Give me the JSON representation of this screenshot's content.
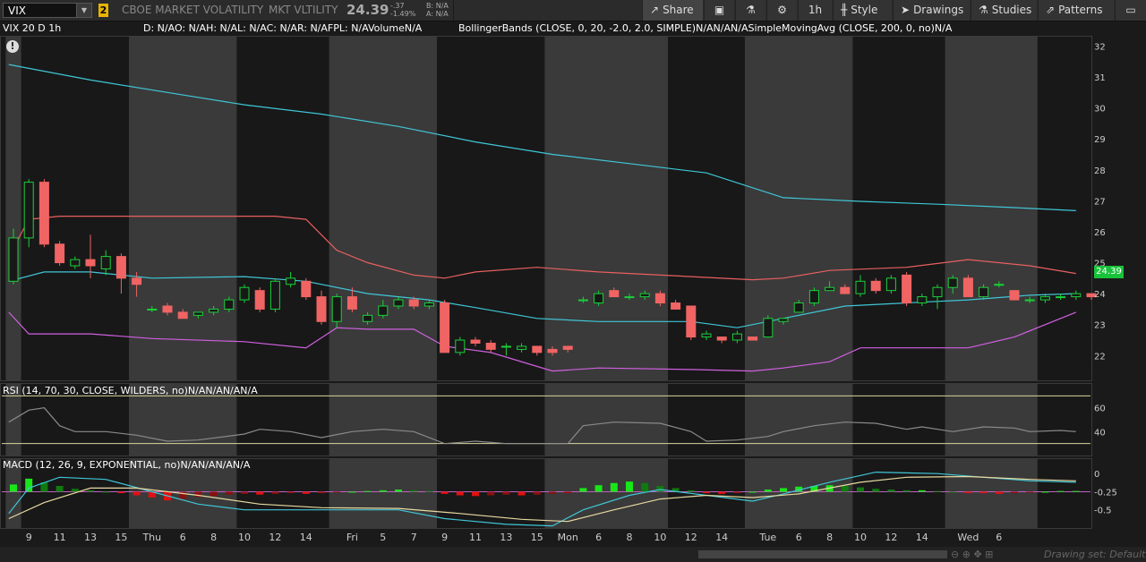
{
  "toolbar": {
    "symbol": "VIX",
    "link_number": "2",
    "description": "CBOE MARKET VOLATILITY",
    "short_desc": "MKT VLTILITY",
    "last_price": "24.39",
    "change": "-.37",
    "change_pct": "-1.49%",
    "bid": "B: N/A",
    "ask": "A: N/A",
    "buttons": {
      "share": "Share",
      "timeframe": "1h",
      "style": "Style",
      "drawings": "Drawings",
      "studies": "Studies",
      "patterns": "Patterns"
    }
  },
  "infobar": {
    "chart_label": "VIX 20 D 1h",
    "ohlc": "D: N/AO: N/AH: N/AL: N/AC: N/AR: N/AFPL: N/AVolumeN/A",
    "studies": "BollingerBands (CLOSE, 0, 20, -2.0, 2.0, SIMPLE)N/AN/AN/ASimpleMovingAvg (CLOSE, 200, 0, no)N/A"
  },
  "rsi_label": "RSI (14, 70, 30, CLOSE, WILDERS, no)N/AN/AN/AN/A",
  "macd_label": "MACD (12, 26, 9, EXPONENTIAL, no)N/AN/AN/AN/A",
  "status": {
    "drawing_set": "Drawing set: Default"
  },
  "colors": {
    "up": "#19d139",
    "down": "#f06464",
    "bb_mid": "#3fc6d6",
    "bb_upper": "#e86060",
    "bb_lower": "#d060e0",
    "sma200": "#3fc6d6",
    "rsi": "#8a8a8a",
    "rsi_bands": "#d8d3a0"
  },
  "chart_data": {
    "type": "candlestick",
    "price_axis": {
      "ticks": [
        22,
        23,
        24,
        25,
        26,
        27,
        28,
        29,
        30,
        31,
        32
      ],
      "range": [
        21.2,
        32.3
      ]
    },
    "rsi_axis": {
      "ticks": [
        40,
        60
      ],
      "range": [
        20,
        80
      ]
    },
    "macd_axis": {
      "ticks": [
        0,
        -0.25,
        -0.5
      ],
      "labels": [
        "0",
        "-0.25",
        "-0.5"
      ],
      "range": [
        -0.75,
        0.2
      ]
    },
    "x_ticks": [
      {
        "i": 1,
        "label": "9"
      },
      {
        "i": 3,
        "label": "11"
      },
      {
        "i": 5,
        "label": "13"
      },
      {
        "i": 7,
        "label": "15"
      },
      {
        "i": 9,
        "label": "Thu"
      },
      {
        "i": 11,
        "label": "6"
      },
      {
        "i": 13,
        "label": "8"
      },
      {
        "i": 15,
        "label": "10"
      },
      {
        "i": 17,
        "label": "12"
      },
      {
        "i": 19,
        "label": "14"
      },
      {
        "i": 22,
        "label": "Fri"
      },
      {
        "i": 24,
        "label": "5"
      },
      {
        "i": 26,
        "label": "7"
      },
      {
        "i": 28,
        "label": "9"
      },
      {
        "i": 30,
        "label": "11"
      },
      {
        "i": 32,
        "label": "13"
      },
      {
        "i": 34,
        "label": "15"
      },
      {
        "i": 36,
        "label": "Mon"
      },
      {
        "i": 38,
        "label": "6"
      },
      {
        "i": 40,
        "label": "8"
      },
      {
        "i": 42,
        "label": "10"
      },
      {
        "i": 44,
        "label": "12"
      },
      {
        "i": 46,
        "label": "14"
      },
      {
        "i": 49,
        "label": "Tue"
      },
      {
        "i": 51,
        "label": "6"
      },
      {
        "i": 53,
        "label": "8"
      },
      {
        "i": 55,
        "label": "10"
      },
      {
        "i": 57,
        "label": "12"
      },
      {
        "i": 59,
        "label": "14"
      },
      {
        "i": 62,
        "label": "Wed"
      },
      {
        "i": 64,
        "label": "6"
      }
    ],
    "session_shading": [
      [
        -0.5,
        0.5
      ],
      [
        7.5,
        14.5
      ],
      [
        20.5,
        27.5
      ],
      [
        34.5,
        42.5
      ],
      [
        47.5,
        54.5
      ],
      [
        60.5,
        66.5
      ]
    ],
    "candles": [
      {
        "o": 24.4,
        "h": 26.1,
        "l": 24.3,
        "c": 25.8
      },
      {
        "o": 25.8,
        "h": 27.7,
        "l": 25.5,
        "c": 27.6
      },
      {
        "o": 27.6,
        "h": 27.7,
        "l": 25.5,
        "c": 25.6
      },
      {
        "o": 25.6,
        "h": 25.7,
        "l": 24.9,
        "c": 25.0
      },
      {
        "o": 24.9,
        "h": 25.2,
        "l": 24.8,
        "c": 25.1
      },
      {
        "o": 25.1,
        "h": 25.9,
        "l": 24.5,
        "c": 24.9
      },
      {
        "o": 24.8,
        "h": 25.4,
        "l": 24.6,
        "c": 25.2
      },
      {
        "o": 25.2,
        "h": 25.3,
        "l": 24.0,
        "c": 24.5
      },
      {
        "o": 24.5,
        "h": 24.7,
        "l": 23.9,
        "c": 24.3
      },
      {
        "o": 23.5,
        "h": 23.6,
        "l": 23.4,
        "c": 23.5
      },
      {
        "o": 23.6,
        "h": 23.7,
        "l": 23.3,
        "c": 23.4
      },
      {
        "o": 23.4,
        "h": 23.5,
        "l": 23.2,
        "c": 23.2
      },
      {
        "o": 23.3,
        "h": 23.4,
        "l": 23.2,
        "c": 23.4
      },
      {
        "o": 23.4,
        "h": 23.6,
        "l": 23.3,
        "c": 23.5
      },
      {
        "o": 23.5,
        "h": 23.9,
        "l": 23.4,
        "c": 23.8
      },
      {
        "o": 23.8,
        "h": 24.3,
        "l": 23.7,
        "c": 24.2
      },
      {
        "o": 24.1,
        "h": 24.2,
        "l": 23.4,
        "c": 23.5
      },
      {
        "o": 23.5,
        "h": 24.5,
        "l": 23.4,
        "c": 24.4
      },
      {
        "o": 24.3,
        "h": 24.7,
        "l": 24.2,
        "c": 24.5
      },
      {
        "o": 24.4,
        "h": 24.5,
        "l": 23.8,
        "c": 23.9
      },
      {
        "o": 23.9,
        "h": 24.1,
        "l": 23.0,
        "c": 23.1
      },
      {
        "o": 23.1,
        "h": 24.0,
        "l": 22.9,
        "c": 23.9
      },
      {
        "o": 23.9,
        "h": 24.2,
        "l": 23.4,
        "c": 23.5
      },
      {
        "o": 23.1,
        "h": 23.4,
        "l": 23.0,
        "c": 23.3
      },
      {
        "o": 23.3,
        "h": 23.8,
        "l": 23.2,
        "c": 23.6
      },
      {
        "o": 23.6,
        "h": 23.9,
        "l": 23.5,
        "c": 23.8
      },
      {
        "o": 23.8,
        "h": 23.9,
        "l": 23.5,
        "c": 23.6
      },
      {
        "o": 23.6,
        "h": 23.8,
        "l": 23.5,
        "c": 23.7
      },
      {
        "o": 23.7,
        "h": 23.8,
        "l": 22.1,
        "c": 22.1
      },
      {
        "o": 22.1,
        "h": 22.6,
        "l": 22.0,
        "c": 22.5
      },
      {
        "o": 22.5,
        "h": 22.6,
        "l": 22.3,
        "c": 22.4
      },
      {
        "o": 22.4,
        "h": 22.5,
        "l": 22.1,
        "c": 22.2
      },
      {
        "o": 22.3,
        "h": 22.4,
        "l": 22.0,
        "c": 22.3
      },
      {
        "o": 22.2,
        "h": 22.4,
        "l": 22.1,
        "c": 22.3
      },
      {
        "o": 22.3,
        "h": 22.3,
        "l": 22.0,
        "c": 22.1
      },
      {
        "o": 22.2,
        "h": 22.3,
        "l": 22.0,
        "c": 22.1
      },
      {
        "o": 22.3,
        "h": 22.3,
        "l": 22.1,
        "c": 22.2
      },
      {
        "o": 23.8,
        "h": 23.9,
        "l": 23.7,
        "c": 23.8
      },
      {
        "o": 23.7,
        "h": 24.1,
        "l": 23.6,
        "c": 24.0
      },
      {
        "o": 24.1,
        "h": 24.2,
        "l": 23.9,
        "c": 23.9
      },
      {
        "o": 23.9,
        "h": 24.0,
        "l": 23.8,
        "c": 23.9
      },
      {
        "o": 23.9,
        "h": 24.1,
        "l": 23.8,
        "c": 24.0
      },
      {
        "o": 24.0,
        "h": 24.1,
        "l": 23.6,
        "c": 23.7
      },
      {
        "o": 23.7,
        "h": 23.8,
        "l": 23.5,
        "c": 23.5
      },
      {
        "o": 23.6,
        "h": 23.6,
        "l": 22.5,
        "c": 22.6
      },
      {
        "o": 22.6,
        "h": 22.8,
        "l": 22.5,
        "c": 22.7
      },
      {
        "o": 22.6,
        "h": 22.6,
        "l": 22.4,
        "c": 22.5
      },
      {
        "o": 22.5,
        "h": 22.8,
        "l": 22.4,
        "c": 22.7
      },
      {
        "o": 22.6,
        "h": 22.6,
        "l": 22.5,
        "c": 22.5
      },
      {
        "o": 22.6,
        "h": 23.3,
        "l": 22.6,
        "c": 23.2
      },
      {
        "o": 23.1,
        "h": 23.2,
        "l": 23.0,
        "c": 23.2
      },
      {
        "o": 23.4,
        "h": 23.8,
        "l": 23.4,
        "c": 23.7
      },
      {
        "o": 23.7,
        "h": 24.2,
        "l": 23.6,
        "c": 24.1
      },
      {
        "o": 24.1,
        "h": 24.4,
        "l": 24.1,
        "c": 24.2
      },
      {
        "o": 24.2,
        "h": 24.3,
        "l": 24.0,
        "c": 24.0
      },
      {
        "o": 24.0,
        "h": 24.6,
        "l": 23.9,
        "c": 24.4
      },
      {
        "o": 24.4,
        "h": 24.5,
        "l": 24.0,
        "c": 24.1
      },
      {
        "o": 24.1,
        "h": 24.6,
        "l": 24.0,
        "c": 24.5
      },
      {
        "o": 24.6,
        "h": 24.7,
        "l": 23.6,
        "c": 23.7
      },
      {
        "o": 23.7,
        "h": 24.0,
        "l": 23.6,
        "c": 23.9
      },
      {
        "o": 23.9,
        "h": 24.3,
        "l": 23.5,
        "c": 24.2
      },
      {
        "o": 24.2,
        "h": 24.6,
        "l": 24.0,
        "c": 24.5
      },
      {
        "o": 24.5,
        "h": 24.6,
        "l": 23.9,
        "c": 23.9
      },
      {
        "o": 23.9,
        "h": 24.3,
        "l": 23.8,
        "c": 24.2
      },
      {
        "o": 24.3,
        "h": 24.4,
        "l": 24.2,
        "c": 24.3
      },
      {
        "o": 24.1,
        "h": 24.1,
        "l": 23.8,
        "c": 23.8
      },
      {
        "o": 23.8,
        "h": 23.9,
        "l": 23.7,
        "c": 23.8
      },
      {
        "o": 23.8,
        "h": 24.0,
        "l": 23.7,
        "c": 23.9
      },
      {
        "o": 23.9,
        "h": 24.0,
        "l": 23.8,
        "c": 23.9
      },
      {
        "o": 23.9,
        "h": 24.1,
        "l": 23.8,
        "c": 24.0
      },
      {
        "o": 24.0,
        "h": 24.0,
        "l": 23.8,
        "c": 23.9
      }
    ],
    "sma200": [
      [
        -0.3,
        31.4
      ],
      [
        5,
        30.9
      ],
      [
        10,
        30.5
      ],
      [
        15,
        30.1
      ],
      [
        20,
        29.8
      ],
      [
        25,
        29.4
      ],
      [
        30,
        28.9
      ],
      [
        35,
        28.5
      ],
      [
        40,
        28.2
      ],
      [
        45,
        27.9
      ],
      [
        50,
        27.1
      ],
      [
        55,
        26.98
      ],
      [
        60,
        26.89
      ],
      [
        65,
        26.78
      ],
      [
        69,
        26.68
      ]
    ],
    "bb_upper": [
      [
        -0.3,
        25.2
      ],
      [
        1,
        26.4
      ],
      [
        3,
        26.5
      ],
      [
        9,
        26.5
      ],
      [
        17,
        26.5
      ],
      [
        19,
        26.4
      ],
      [
        21,
        25.4
      ],
      [
        23,
        25.0
      ],
      [
        26,
        24.6
      ],
      [
        28,
        24.5
      ],
      [
        30,
        24.7
      ],
      [
        34,
        24.85
      ],
      [
        38,
        24.7
      ],
      [
        44,
        24.55
      ],
      [
        48,
        24.45
      ],
      [
        50,
        24.5
      ],
      [
        53,
        24.75
      ],
      [
        58,
        24.85
      ],
      [
        62,
        25.1
      ],
      [
        66,
        24.9
      ],
      [
        69,
        24.65
      ]
    ],
    "bb_mid": [
      [
        -0.3,
        24.4
      ],
      [
        2,
        24.7
      ],
      [
        5,
        24.7
      ],
      [
        9,
        24.5
      ],
      [
        15,
        24.55
      ],
      [
        19,
        24.4
      ],
      [
        23,
        24.0
      ],
      [
        27,
        23.8
      ],
      [
        30,
        23.55
      ],
      [
        34,
        23.2
      ],
      [
        38,
        23.1
      ],
      [
        44,
        23.1
      ],
      [
        47,
        22.9
      ],
      [
        50,
        23.2
      ],
      [
        54,
        23.6
      ],
      [
        58,
        23.7
      ],
      [
        62,
        23.8
      ],
      [
        66,
        23.95
      ],
      [
        69,
        24.0
      ]
    ],
    "bb_lower": [
      [
        -0.3,
        23.4
      ],
      [
        1,
        22.7
      ],
      [
        5,
        22.7
      ],
      [
        9,
        22.55
      ],
      [
        15,
        22.45
      ],
      [
        19,
        22.25
      ],
      [
        21,
        22.9
      ],
      [
        23,
        22.85
      ],
      [
        26,
        22.85
      ],
      [
        28,
        22.3
      ],
      [
        31,
        22.1
      ],
      [
        35,
        21.5
      ],
      [
        38,
        21.6
      ],
      [
        44,
        21.55
      ],
      [
        48,
        21.5
      ],
      [
        50,
        21.6
      ],
      [
        53,
        21.8
      ],
      [
        55,
        22.25
      ],
      [
        62,
        22.25
      ],
      [
        65,
        22.6
      ],
      [
        69,
        23.4
      ]
    ],
    "rsi": [
      [
        -0.3,
        48
      ],
      [
        1,
        58
      ],
      [
        2,
        60
      ],
      [
        3,
        45
      ],
      [
        4,
        40
      ],
      [
        6,
        40
      ],
      [
        8,
        37
      ],
      [
        10,
        32
      ],
      [
        12,
        33
      ],
      [
        15,
        38
      ],
      [
        16,
        42
      ],
      [
        18,
        40
      ],
      [
        20,
        35
      ],
      [
        22,
        40
      ],
      [
        24,
        42
      ],
      [
        26,
        40
      ],
      [
        28,
        30
      ],
      [
        30,
        32
      ],
      [
        32,
        30
      ],
      [
        34,
        30
      ],
      [
        36,
        30
      ],
      [
        37,
        45
      ],
      [
        39,
        48
      ],
      [
        42,
        47
      ],
      [
        44,
        40
      ],
      [
        45,
        32
      ],
      [
        47,
        33
      ],
      [
        49,
        36
      ],
      [
        50,
        40
      ],
      [
        52,
        45
      ],
      [
        54,
        48
      ],
      [
        56,
        47
      ],
      [
        58,
        42
      ],
      [
        59,
        44
      ],
      [
        61,
        40
      ],
      [
        63,
        44
      ],
      [
        65,
        43
      ],
      [
        66,
        40
      ],
      [
        68,
        41
      ],
      [
        69,
        40
      ]
    ],
    "rsi_bands": [
      70,
      30
    ],
    "macd_hist": [
      0.1,
      0.18,
      0.13,
      0.08,
      0.04,
      0.02,
      0,
      -0.02,
      -0.05,
      -0.08,
      -0.12,
      -0.1,
      -0.07,
      -0.06,
      -0.04,
      -0.03,
      -0.04,
      -0.03,
      -0.02,
      -0.03,
      -0.02,
      -0.01,
      0,
      0.01,
      0.02,
      0.03,
      0.02,
      0.01,
      -0.03,
      -0.05,
      -0.06,
      -0.05,
      -0.04,
      -0.05,
      -0.04,
      -0.03,
      -0.02,
      0.05,
      0.09,
      0.12,
      0.14,
      0.12,
      0.08,
      0.05,
      0.02,
      -0.02,
      -0.03,
      -0.02,
      0,
      0.03,
      0.05,
      0.07,
      0.08,
      0.09,
      0.08,
      0.06,
      0.04,
      0.03,
      0.02,
      0.02,
      0.01,
      0,
      -0.02,
      -0.02,
      -0.03,
      -0.02,
      -0.01,
      0,
      0.01,
      0.01
    ],
    "macd_line": [
      [
        -0.3,
        -0.55
      ],
      [
        1,
        -0.2
      ],
      [
        3,
        -0.05
      ],
      [
        6,
        -0.08
      ],
      [
        9,
        -0.25
      ],
      [
        12,
        -0.42
      ],
      [
        15,
        -0.5
      ],
      [
        20,
        -0.5
      ],
      [
        25,
        -0.5
      ],
      [
        28,
        -0.62
      ],
      [
        32,
        -0.7
      ],
      [
        35,
        -0.72
      ],
      [
        37,
        -0.5
      ],
      [
        40,
        -0.3
      ],
      [
        42,
        -0.22
      ],
      [
        45,
        -0.3
      ],
      [
        48,
        -0.38
      ],
      [
        50,
        -0.28
      ],
      [
        53,
        -0.12
      ],
      [
        56,
        0.02
      ],
      [
        60,
        0.0
      ],
      [
        63,
        -0.05
      ],
      [
        66,
        -0.1
      ],
      [
        69,
        -0.12
      ]
    ],
    "macd_signal": [
      [
        -0.3,
        -0.62
      ],
      [
        2,
        -0.4
      ],
      [
        5,
        -0.2
      ],
      [
        8,
        -0.2
      ],
      [
        12,
        -0.3
      ],
      [
        16,
        -0.42
      ],
      [
        20,
        -0.47
      ],
      [
        25,
        -0.48
      ],
      [
        29,
        -0.55
      ],
      [
        33,
        -0.63
      ],
      [
        36,
        -0.66
      ],
      [
        39,
        -0.5
      ],
      [
        42,
        -0.35
      ],
      [
        45,
        -0.3
      ],
      [
        48,
        -0.33
      ],
      [
        51,
        -0.28
      ],
      [
        55,
        -0.12
      ],
      [
        58,
        -0.05
      ],
      [
        62,
        -0.04
      ],
      [
        66,
        -0.08
      ],
      [
        69,
        -0.1
      ]
    ]
  }
}
